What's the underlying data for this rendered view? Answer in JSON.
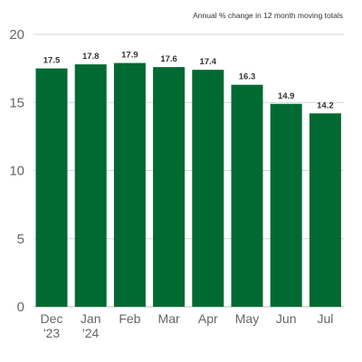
{
  "chart_data": {
    "type": "bar",
    "subtitle": "Annual % change in 12 month moving totals",
    "categories": [
      "Dec\n'23",
      "Jan\n'24",
      "Feb",
      "Mar",
      "Apr",
      "May",
      "Jun",
      "Jul"
    ],
    "values": [
      17.5,
      17.8,
      17.9,
      17.6,
      17.4,
      16.3,
      14.9,
      14.2
    ],
    "data_labels": [
      "17.5",
      "17.8",
      "17.9",
      "17.6",
      "17.4",
      "16.3",
      "14.9",
      "14.2"
    ],
    "yticks": [
      0,
      5,
      10,
      15,
      20
    ],
    "ylim": [
      0,
      20
    ],
    "grid": true,
    "bar_color": "#006a32"
  }
}
